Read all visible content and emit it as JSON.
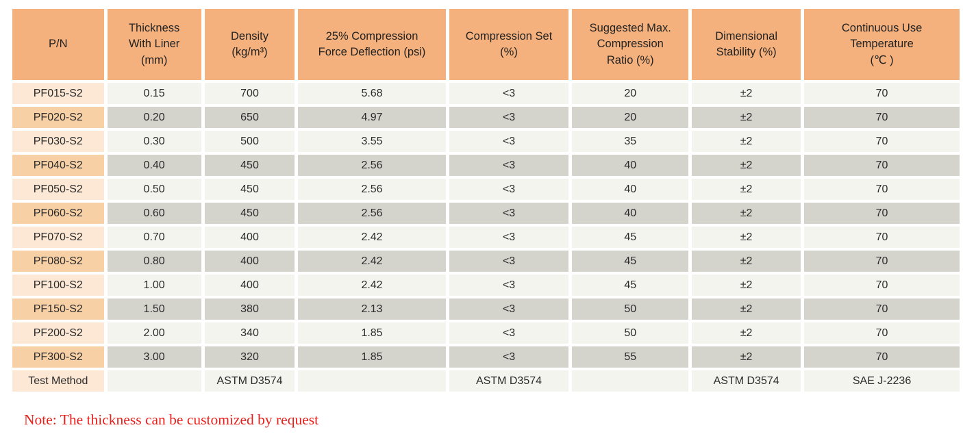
{
  "colors": {
    "header_bg": "#f4b17d",
    "pn_light": "#fce8d4",
    "pn_dark": "#f8d0a6",
    "cell_light": "#f4f4ef",
    "cell_dark": "#d4d4cd",
    "note_red": "#e8201c"
  },
  "table": {
    "headers": [
      {
        "id": "pn",
        "label": "P/N"
      },
      {
        "id": "thickness",
        "label": "Thickness\nWith Liner\n(mm)"
      },
      {
        "id": "density",
        "label": "Density\n(kg/m³)"
      },
      {
        "id": "cfd",
        "label": "25% Compression\nForce Deflection (psi)"
      },
      {
        "id": "compression-set",
        "label": "Compression Set\n(%)"
      },
      {
        "id": "max-compression-ratio",
        "label": "Suggested Max.\nCompression\nRatio (%)"
      },
      {
        "id": "dimensional-stability",
        "label": "Dimensional\nStability (%)"
      },
      {
        "id": "continuous-use-temp",
        "label": "Continuous Use\nTemperature\n(℃ )"
      }
    ],
    "rows": [
      {
        "pn": "PF015-S2",
        "values": [
          "0.15",
          "700",
          "5.68",
          "<3",
          "20",
          "±2",
          "70"
        ]
      },
      {
        "pn": "PF020-S2",
        "values": [
          "0.20",
          "650",
          "4.97",
          "<3",
          "20",
          "±2",
          "70"
        ]
      },
      {
        "pn": "PF030-S2",
        "values": [
          "0.30",
          "500",
          "3.55",
          "<3",
          "35",
          "±2",
          "70"
        ]
      },
      {
        "pn": "PF040-S2",
        "values": [
          "0.40",
          "450",
          "2.56",
          "<3",
          "40",
          "±2",
          "70"
        ]
      },
      {
        "pn": "PF050-S2",
        "values": [
          "0.50",
          "450",
          "2.56",
          "<3",
          "40",
          "±2",
          "70"
        ]
      },
      {
        "pn": "PF060-S2",
        "values": [
          "0.60",
          "450",
          "2.56",
          "<3",
          "40",
          "±2",
          "70"
        ]
      },
      {
        "pn": "PF070-S2",
        "values": [
          "0.70",
          "400",
          "2.42",
          "<3",
          "45",
          "±2",
          "70"
        ]
      },
      {
        "pn": "PF080-S2",
        "values": [
          "0.80",
          "400",
          "2.42",
          "<3",
          "45",
          "±2",
          "70"
        ]
      },
      {
        "pn": "PF100-S2",
        "values": [
          "1.00",
          "400",
          "2.42",
          "<3",
          "45",
          "±2",
          "70"
        ]
      },
      {
        "pn": "PF150-S2",
        "values": [
          "1.50",
          "380",
          "2.13",
          "<3",
          "50",
          "±2",
          "70"
        ]
      },
      {
        "pn": "PF200-S2",
        "values": [
          "2.00",
          "340",
          "1.85",
          "<3",
          "50",
          "±2",
          "70"
        ]
      },
      {
        "pn": "PF300-S2",
        "values": [
          "3.00",
          "320",
          "1.85",
          "<3",
          "55",
          "±2",
          "70"
        ]
      }
    ],
    "footer": {
      "pn": "Test Method",
      "values": [
        "",
        "ASTM D3574",
        "",
        "ASTM D3574",
        "",
        "ASTM D3574",
        "SAE J-2236"
      ]
    }
  },
  "note": "Note: The thickness can be customized by request"
}
